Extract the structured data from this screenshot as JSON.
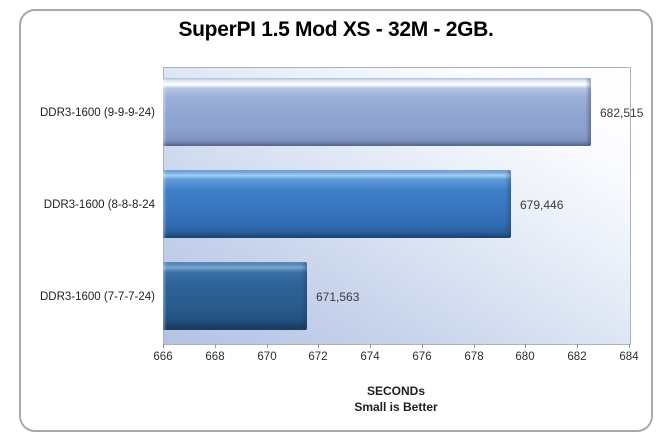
{
  "chart_data": {
    "type": "bar",
    "orientation": "horizontal",
    "title": "SuperPI 1.5 Mod XS - 32M - 2GB.",
    "categories": [
      "DDR3-1600 (9-9-9-24)",
      "DDR3-1600 (8-8-8-24",
      "DDR3-1600 (7-7-7-24)"
    ],
    "values": [
      682.515,
      679.446,
      671.563
    ],
    "value_labels": [
      "682,515",
      "679,446",
      "671,563"
    ],
    "xlabel_line1": "SECONDs",
    "xlabel_line2": "Small is Better",
    "xlim": [
      666,
      684
    ],
    "xticks": [
      666,
      668,
      670,
      672,
      674,
      676,
      678,
      680,
      682,
      684
    ],
    "grid": false,
    "legend": false,
    "bar_colors": [
      "#92a8d4",
      "#3a7ac6",
      "#2a6094"
    ],
    "plot_bg_gradient": [
      "#b2c3e4",
      "#ffffff"
    ],
    "frame_border_color": "#a9a9a9"
  }
}
